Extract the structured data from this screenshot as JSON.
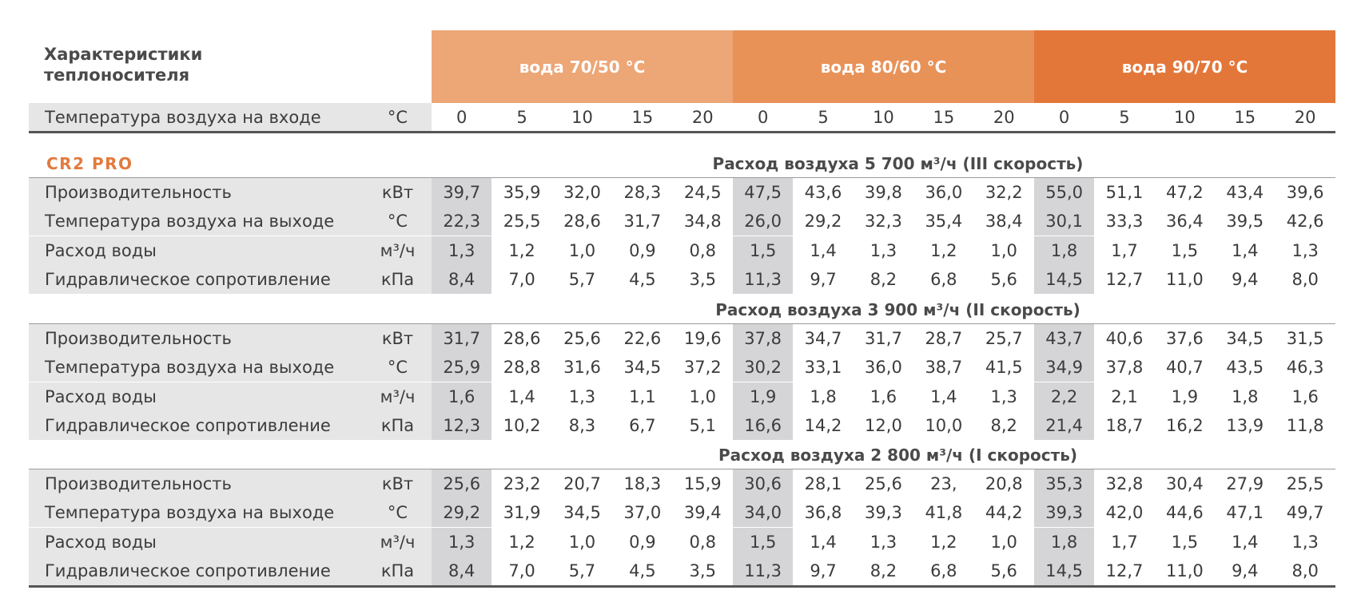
{
  "header": {
    "title_line1": "Характеристики",
    "title_line2": "теплоносителя",
    "groups": [
      {
        "label": "вода 70/50 °C",
        "color": "#eda676"
      },
      {
        "label": "вода 80/60 °C",
        "color": "#e89258"
      },
      {
        "label": "вода 90/70 °C",
        "color": "#e3773a"
      }
    ]
  },
  "inlet_row": {
    "label": "Температура воздуха на входе",
    "unit": "°C",
    "values": [
      "0",
      "5",
      "10",
      "15",
      "20",
      "0",
      "5",
      "10",
      "15",
      "20",
      "0",
      "5",
      "10",
      "15",
      "20"
    ]
  },
  "model": "CR2 PRO",
  "sections": [
    {
      "caption": "Расход воздуха 5 700 м³/ч (III скорость)",
      "rows": [
        {
          "label": "Производительность",
          "unit": "кВт",
          "values": [
            "39,7",
            "35,9",
            "32,0",
            "28,3",
            "24,5",
            "47,5",
            "43,6",
            "39,8",
            "36,0",
            "32,2",
            "55,0",
            "51,1",
            "47,2",
            "43,4",
            "39,6"
          ]
        },
        {
          "label": "Температура воздуха на выходе",
          "unit": "°C",
          "values": [
            "22,3",
            "25,5",
            "28,6",
            "31,7",
            "34,8",
            "26,0",
            "29,2",
            "32,3",
            "35,4",
            "38,4",
            "30,1",
            "33,3",
            "36,4",
            "39,5",
            "42,6"
          ]
        },
        {
          "label": "Расход воды",
          "unit": "м³/ч",
          "values": [
            "1,3",
            "1,2",
            "1,0",
            "0,9",
            "0,8",
            "1,5",
            "1,4",
            "1,3",
            "1,2",
            "1,0",
            "1,8",
            "1,7",
            "1,5",
            "1,4",
            "1,3"
          ]
        },
        {
          "label": "Гидравлическое сопротивление",
          "unit": "кПа",
          "values": [
            "8,4",
            "7,0",
            "5,7",
            "4,5",
            "3,5",
            "11,3",
            "9,7",
            "8,2",
            "6,8",
            "5,6",
            "14,5",
            "12,7",
            "11,0",
            "9,4",
            "8,0"
          ]
        }
      ]
    },
    {
      "caption": "Расход воздуха 3 900 м³/ч (II скорость)",
      "rows": [
        {
          "label": "Производительность",
          "unit": "кВт",
          "values": [
            "31,7",
            "28,6",
            "25,6",
            "22,6",
            "19,6",
            "37,8",
            "34,7",
            "31,7",
            "28,7",
            "25,7",
            "43,7",
            "40,6",
            "37,6",
            "34,5",
            "31,5"
          ]
        },
        {
          "label": "Температура воздуха на выходе",
          "unit": "°C",
          "values": [
            "25,9",
            "28,8",
            "31,6",
            "34,5",
            "37,2",
            "30,2",
            "33,1",
            "36,0",
            "38,7",
            "41,5",
            "34,9",
            "37,8",
            "40,7",
            "43,5",
            "46,3"
          ]
        },
        {
          "label": "Расход воды",
          "unit": "м³/ч",
          "values": [
            "1,6",
            "1,4",
            "1,3",
            "1,1",
            "1,0",
            "1,9",
            "1,8",
            "1,6",
            "1,4",
            "1,3",
            "2,2",
            "2,1",
            "1,9",
            "1,8",
            "1,6"
          ]
        },
        {
          "label": "Гидравлическое сопротивление",
          "unit": "кПа",
          "values": [
            "12,3",
            "10,2",
            "8,3",
            "6,7",
            "5,1",
            "16,6",
            "14,2",
            "12,0",
            "10,0",
            "8,2",
            "21,4",
            "18,7",
            "16,2",
            "13,9",
            "11,8"
          ]
        }
      ]
    },
    {
      "caption": "Расход воздуха 2 800 м³/ч (I скорость)",
      "rows": [
        {
          "label": "Производительность",
          "unit": "кВт",
          "values": [
            "25,6",
            "23,2",
            "20,7",
            "18,3",
            "15,9",
            "30,6",
            "28,1",
            "25,6",
            "23,",
            "20,8",
            "35,3",
            "32,8",
            "30,4",
            "27,9",
            "25,5"
          ]
        },
        {
          "label": "Температура воздуха на выходе",
          "unit": "°C",
          "values": [
            "29,2",
            "31,9",
            "34,5",
            "37,0",
            "39,4",
            "34,0",
            "36,8",
            "39,3",
            "41,8",
            "44,2",
            "39,3",
            "42,0",
            "44,6",
            "47,1",
            "49,7"
          ]
        },
        {
          "label": "Расход воды",
          "unit": "м³/ч",
          "values": [
            "1,3",
            "1,2",
            "1,0",
            "0,9",
            "0,8",
            "1,5",
            "1,4",
            "1,3",
            "1,2",
            "1,0",
            "1,8",
            "1,7",
            "1,5",
            "1,4",
            "1,3"
          ]
        },
        {
          "label": "Гидравлическое сопротивление",
          "unit": "кПа",
          "values": [
            "8,4",
            "7,0",
            "5,7",
            "4,5",
            "3,5",
            "11,3",
            "9,7",
            "8,2",
            "6,8",
            "5,6",
            "14,5",
            "12,7",
            "11,0",
            "9,4",
            "8,0"
          ]
        }
      ]
    }
  ]
}
